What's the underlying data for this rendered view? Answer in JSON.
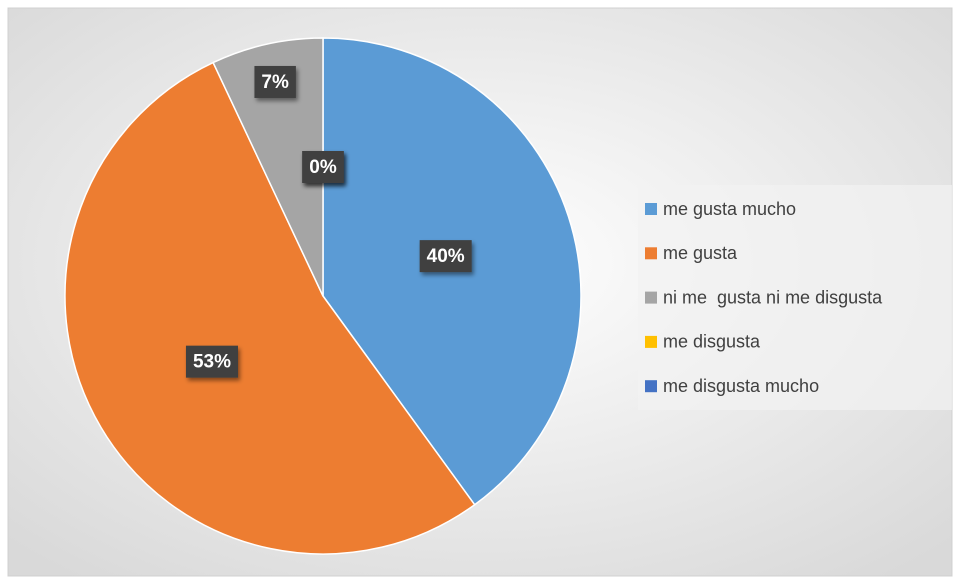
{
  "chart_data": {
    "type": "pie",
    "categories": [
      "me gusta mucho",
      "me gusta",
      "ni me  gusta ni me disgusta",
      "me disgusta",
      "me disgusta mucho"
    ],
    "values": [
      40,
      53,
      7,
      0,
      0
    ],
    "value_labels": [
      "40%",
      "53%",
      "7%",
      "0%",
      "0%"
    ],
    "colors": [
      "#5b9bd5",
      "#ed7d31",
      "#a5a5a5",
      "#ffc000",
      "#4472c4"
    ],
    "legend": "right"
  }
}
